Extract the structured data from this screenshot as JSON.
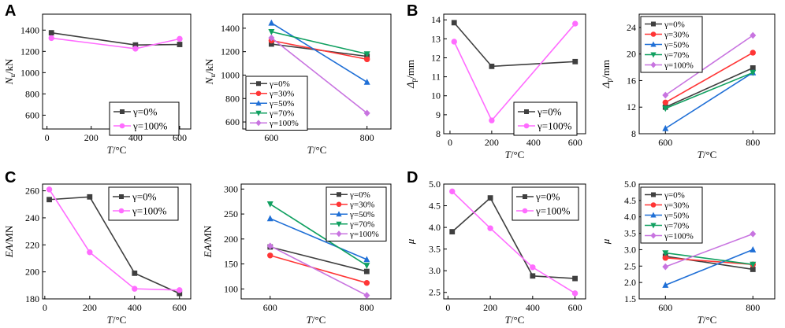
{
  "figure": {
    "panel_labels": [
      "A",
      "B",
      "C",
      "D"
    ]
  },
  "chart_data": [
    {
      "id": "A1",
      "panel": "A",
      "type": "line",
      "ylabel_main": "N",
      "ylabel_sub": "u",
      "ylabel_unit": "/kN",
      "xlabel": "T/°C",
      "xlim": [
        -20,
        650
      ],
      "ylim": [
        470,
        1550
      ],
      "xticks": [
        0,
        200,
        400,
        600
      ],
      "yticks": [
        600,
        800,
        1000,
        1200,
        1400
      ],
      "legend_position": "bottom-right",
      "series": [
        {
          "name": "γ=0%",
          "color": "#3f3f3f",
          "marker": "square",
          "x": [
            20,
            400,
            600
          ],
          "y": [
            1375,
            1260,
            1265
          ]
        },
        {
          "name": "γ=100%",
          "color": "#ff6cff",
          "marker": "circle",
          "x": [
            20,
            400,
            600
          ],
          "y": [
            1325,
            1225,
            1318
          ]
        }
      ]
    },
    {
      "id": "A2",
      "panel": "A",
      "type": "line",
      "ylabel_main": "N",
      "ylabel_sub": "u",
      "ylabel_unit": "/kN",
      "xlabel": "T/°C",
      "xlim": [
        540,
        850
      ],
      "ylim": [
        540,
        1520
      ],
      "xticks": [
        600,
        800
      ],
      "yticks": [
        600,
        800,
        1000,
        1200,
        1400
      ],
      "legend_position": "bottom-left",
      "series": [
        {
          "name": "γ=0%",
          "color": "#3f3f3f",
          "marker": "square",
          "x": [
            600,
            800
          ],
          "y": [
            1265,
            1160
          ]
        },
        {
          "name": "γ=30%",
          "color": "#ff3535",
          "marker": "circle",
          "x": [
            600,
            800
          ],
          "y": [
            1295,
            1135
          ]
        },
        {
          "name": "γ=50%",
          "color": "#1f6fd6",
          "marker": "triangle-up",
          "x": [
            600,
            800
          ],
          "y": [
            1445,
            940
          ]
        },
        {
          "name": "γ=70%",
          "color": "#10a060",
          "marker": "triangle-down",
          "x": [
            600,
            800
          ],
          "y": [
            1370,
            1180
          ]
        },
        {
          "name": "γ=100%",
          "color": "#c874e0",
          "marker": "diamond",
          "x": [
            600,
            800
          ],
          "y": [
            1318,
            675
          ]
        }
      ]
    },
    {
      "id": "B1",
      "panel": "B",
      "type": "line",
      "ylabel_main": "Δ",
      "ylabel_sub": "p",
      "ylabel_unit": "/mm",
      "xlabel": "T/°C",
      "xlim": [
        -30,
        650
      ],
      "ylim": [
        8,
        14.3
      ],
      "xticks": [
        0,
        200,
        400,
        600
      ],
      "yticks": [
        8,
        9,
        10,
        11,
        12,
        13,
        14
      ],
      "legend_position": "bottom-right",
      "series": [
        {
          "name": "γ=0%",
          "color": "#3f3f3f",
          "marker": "square",
          "x": [
            20,
            200,
            600
          ],
          "y": [
            13.85,
            11.55,
            11.8
          ]
        },
        {
          "name": "γ=100%",
          "color": "#ff6cff",
          "marker": "circle",
          "x": [
            20,
            200,
            600
          ],
          "y": [
            12.85,
            8.7,
            13.8
          ]
        }
      ]
    },
    {
      "id": "B2",
      "panel": "B",
      "type": "line",
      "ylabel_main": "Δ",
      "ylabel_sub": "p",
      "ylabel_unit": "/mm",
      "xlabel": "T/°C",
      "xlim": [
        540,
        850
      ],
      "ylim": [
        8,
        26
      ],
      "xticks": [
        600,
        800
      ],
      "yticks": [
        8,
        12,
        16,
        20,
        24
      ],
      "legend_position": "top-left",
      "series": [
        {
          "name": "γ=0%",
          "color": "#3f3f3f",
          "marker": "square",
          "x": [
            600,
            800
          ],
          "y": [
            12.0,
            17.9
          ]
        },
        {
          "name": "γ=30%",
          "color": "#ff3535",
          "marker": "circle",
          "x": [
            600,
            800
          ],
          "y": [
            12.7,
            20.2
          ]
        },
        {
          "name": "γ=50%",
          "color": "#1f6fd6",
          "marker": "triangle-up",
          "x": [
            600,
            800
          ],
          "y": [
            8.8,
            17.2
          ]
        },
        {
          "name": "γ=70%",
          "color": "#10a060",
          "marker": "triangle-down",
          "x": [
            600,
            800
          ],
          "y": [
            11.8,
            17.2
          ]
        },
        {
          "name": "γ=100%",
          "color": "#c874e0",
          "marker": "diamond",
          "x": [
            600,
            800
          ],
          "y": [
            13.8,
            22.8
          ]
        }
      ]
    },
    {
      "id": "C1",
      "panel": "C",
      "type": "line",
      "ylabel_main": "EA",
      "ylabel_sub": "",
      "ylabel_unit": "/MN",
      "xlabel": "T/°C",
      "xlim": [
        -10,
        650
      ],
      "ylim": [
        180,
        265
      ],
      "xticks": [
        0,
        200,
        400,
        600
      ],
      "yticks": [
        180,
        200,
        220,
        240,
        260
      ],
      "legend_position": "top-right",
      "series": [
        {
          "name": "γ=0%",
          "color": "#3f3f3f",
          "marker": "square",
          "x": [
            20,
            200,
            400,
            600
          ],
          "y": [
            253.5,
            255.5,
            199,
            184
          ]
        },
        {
          "name": "γ=100%",
          "color": "#ff6cff",
          "marker": "circle",
          "x": [
            20,
            200,
            400,
            600
          ],
          "y": [
            261,
            214.5,
            187.5,
            186.5
          ]
        }
      ]
    },
    {
      "id": "C2",
      "panel": "C",
      "type": "line",
      "ylabel_main": "EA",
      "ylabel_sub": "",
      "ylabel_unit": "/MN",
      "xlabel": "T/°C",
      "xlim": [
        540,
        850
      ],
      "ylim": [
        80,
        310
      ],
      "xticks": [
        600,
        800
      ],
      "yticks": [
        100,
        150,
        200,
        250,
        300
      ],
      "legend_position": "top-right",
      "series": [
        {
          "name": "γ=0%",
          "color": "#3f3f3f",
          "marker": "square",
          "x": [
            600,
            800
          ],
          "y": [
            184,
            135
          ]
        },
        {
          "name": "γ=30%",
          "color": "#ff3535",
          "marker": "circle",
          "x": [
            600,
            800
          ],
          "y": [
            167,
            112
          ]
        },
        {
          "name": "γ=50%",
          "color": "#1f6fd6",
          "marker": "triangle-up",
          "x": [
            600,
            800
          ],
          "y": [
            241,
            159
          ]
        },
        {
          "name": "γ=70%",
          "color": "#10a060",
          "marker": "triangle-down",
          "x": [
            600,
            800
          ],
          "y": [
            270,
            147
          ]
        },
        {
          "name": "γ=100%",
          "color": "#c874e0",
          "marker": "diamond",
          "x": [
            600,
            800
          ],
          "y": [
            186,
            87
          ]
        }
      ]
    },
    {
      "id": "D1",
      "panel": "D",
      "type": "line",
      "ylabel_main": "μ",
      "ylabel_sub": "",
      "ylabel_unit": "",
      "xlabel": "T/°C",
      "xlim": [
        -20,
        650
      ],
      "ylim": [
        2.35,
        5.0
      ],
      "xticks": [
        0,
        200,
        400,
        600
      ],
      "yticks": [
        2.5,
        3.0,
        3.5,
        4.0,
        4.5,
        5.0
      ],
      "legend_position": "top-right",
      "series": [
        {
          "name": "γ=0%",
          "color": "#3f3f3f",
          "marker": "square",
          "x": [
            20,
            200,
            400,
            600
          ],
          "y": [
            3.9,
            4.68,
            2.88,
            2.82
          ]
        },
        {
          "name": "γ=100%",
          "color": "#ff6cff",
          "marker": "circle",
          "x": [
            20,
            200,
            400,
            600
          ],
          "y": [
            4.83,
            3.98,
            3.08,
            2.48
          ]
        }
      ]
    },
    {
      "id": "D2",
      "panel": "D",
      "type": "line",
      "ylabel_main": "μ",
      "ylabel_sub": "",
      "ylabel_unit": "",
      "xlabel": "T/°C",
      "xlim": [
        540,
        850
      ],
      "ylim": [
        1.5,
        5.0
      ],
      "xticks": [
        600,
        800
      ],
      "yticks": [
        1.5,
        2.0,
        2.5,
        3.0,
        3.5,
        4.0,
        4.5,
        5.0
      ],
      "legend_position": "top-left",
      "series": [
        {
          "name": "γ=0%",
          "color": "#3f3f3f",
          "marker": "square",
          "x": [
            600,
            800
          ],
          "y": [
            2.8,
            2.4
          ]
        },
        {
          "name": "γ=30%",
          "color": "#ff3535",
          "marker": "circle",
          "x": [
            600,
            800
          ],
          "y": [
            2.75,
            2.55
          ]
        },
        {
          "name": "γ=50%",
          "color": "#1f6fd6",
          "marker": "triangle-up",
          "x": [
            600,
            800
          ],
          "y": [
            1.92,
            3.0
          ]
        },
        {
          "name": "γ=70%",
          "color": "#10a060",
          "marker": "triangle-down",
          "x": [
            600,
            800
          ],
          "y": [
            2.9,
            2.55
          ]
        },
        {
          "name": "γ=100%",
          "color": "#c874e0",
          "marker": "diamond",
          "x": [
            600,
            800
          ],
          "y": [
            2.48,
            3.48
          ]
        }
      ]
    }
  ]
}
